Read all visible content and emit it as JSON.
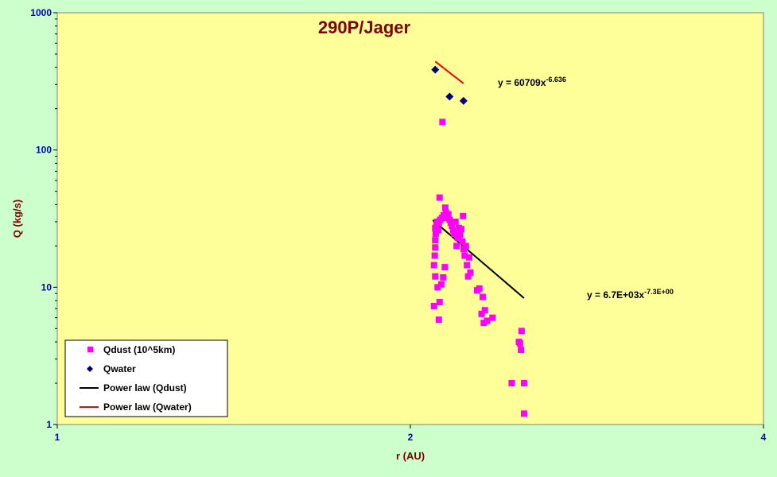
{
  "chart_data": {
    "type": "scatter",
    "title": "290P/Jager",
    "xlabel": "r (AU)",
    "ylabel": "Q (kg/s)",
    "xscale": "log",
    "yscale": "log",
    "xlim": [
      1,
      4
    ],
    "ylim": [
      1,
      1000
    ],
    "xticks": [
      1,
      2,
      4
    ],
    "xtick_labels": [
      "1",
      "2",
      "4"
    ],
    "yticks": [
      1,
      10,
      100,
      1000
    ],
    "ytick_labels": [
      "1",
      "10",
      "100",
      "1000"
    ],
    "grid": false,
    "legend_position": "bottom-left",
    "colors": {
      "plot_bg": "#ffff99",
      "page_bg": "#ccffcc",
      "qdust": "#ff00ff",
      "qwater": "#000080",
      "fit_dust": "#000000",
      "fit_water": "#ff0000",
      "title": "#800000",
      "tick_x": "#0000cc"
    },
    "series": [
      {
        "name": "Qdust (10^5km)",
        "marker": "square",
        "points": [
          [
            2.095,
            7.3
          ],
          [
            2.1,
            12.0
          ],
          [
            2.095,
            14.5
          ],
          [
            2.098,
            17.0
          ],
          [
            2.1,
            19.5
          ],
          [
            2.1,
            22.0
          ],
          [
            2.102,
            24.5
          ],
          [
            2.1,
            27.0
          ],
          [
            2.105,
            28.5
          ],
          [
            2.108,
            30.0
          ],
          [
            2.11,
            10.0
          ],
          [
            2.112,
            26.0
          ],
          [
            2.115,
            5.8
          ],
          [
            2.118,
            7.8
          ],
          [
            2.115,
            29.5
          ],
          [
            2.12,
            31.0
          ],
          [
            2.118,
            45.0
          ],
          [
            2.125,
            10.5
          ],
          [
            2.128,
            32.0
          ],
          [
            2.13,
            160.0
          ],
          [
            2.133,
            11.8
          ],
          [
            2.135,
            33.5
          ],
          [
            2.14,
            14.0
          ],
          [
            2.142,
            38.0
          ],
          [
            2.145,
            35.0
          ],
          [
            2.15,
            32.0
          ],
          [
            2.155,
            34.0
          ],
          [
            2.16,
            31.0
          ],
          [
            2.165,
            29.5
          ],
          [
            2.17,
            28.0
          ],
          [
            2.175,
            26.0
          ],
          [
            2.18,
            24.5
          ],
          [
            2.185,
            30.0
          ],
          [
            2.19,
            20.0
          ],
          [
            2.195,
            23.0
          ],
          [
            2.2,
            27.0
          ],
          [
            2.205,
            24.0
          ],
          [
            2.21,
            26.5
          ],
          [
            2.215,
            21.5
          ],
          [
            2.218,
            33.0
          ],
          [
            2.22,
            19.0
          ],
          [
            2.225,
            17.0
          ],
          [
            2.23,
            20.0
          ],
          [
            2.235,
            14.5
          ],
          [
            2.24,
            12.0
          ],
          [
            2.245,
            16.5
          ],
          [
            2.25,
            12.8
          ],
          [
            2.28,
            9.5
          ],
          [
            2.29,
            9.8
          ],
          [
            2.3,
            6.4
          ],
          [
            2.305,
            8.5
          ],
          [
            2.31,
            5.5
          ],
          [
            2.315,
            6.8
          ],
          [
            2.325,
            5.7
          ],
          [
            2.35,
            6.0
          ],
          [
            2.44,
            2.0
          ],
          [
            2.475,
            4.0
          ],
          [
            2.48,
            3.9
          ],
          [
            2.485,
            3.5
          ],
          [
            2.488,
            4.8
          ],
          [
            2.5,
            2.0
          ],
          [
            2.5,
            1.2
          ]
        ]
      },
      {
        "name": "Qwater",
        "marker": "diamond",
        "points": [
          [
            2.1,
            385
          ],
          [
            2.16,
            245
          ],
          [
            2.22,
            228
          ]
        ]
      }
    ],
    "fits": [
      {
        "name": "Power law (Qdust)",
        "equation_base": "y = 6.7E+03x",
        "equation_exp": "-7.3E+00",
        "a": 6700,
        "b": -7.3,
        "x_range": [
          2.09,
          2.5
        ]
      },
      {
        "name": "Power law (Qwater)",
        "equation_base": "y = 60709x",
        "equation_exp": "-6.636",
        "a": 60709,
        "b": -6.636,
        "x_range": [
          2.1,
          2.22
        ]
      }
    ]
  }
}
